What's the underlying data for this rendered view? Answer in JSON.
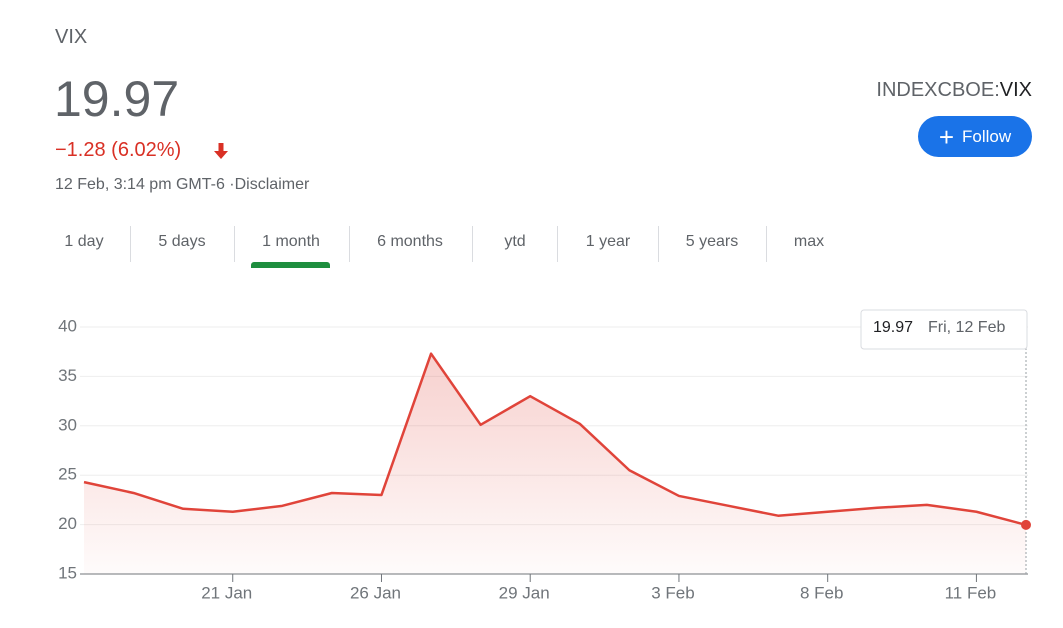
{
  "header": {
    "name": "VIX",
    "price": "19.97",
    "change": "−1.28 (6.02%)",
    "timestamp": "12 Feb, 3:14 pm GMT-6 ·",
    "disclaimer": "Disclaimer",
    "exchange": "INDEXCBOE:",
    "ticker": "VIX",
    "follow": "Follow"
  },
  "tabs": {
    "items": [
      "1 day",
      "5 days",
      "1 month",
      "6 months",
      "ytd",
      "1 year",
      "5 years",
      "max"
    ],
    "active": 2
  },
  "tooltip": {
    "date": "Fri, 12 Feb"
  },
  "chart_data": {
    "type": "line",
    "categories": [
      null,
      null,
      null,
      "21 Jan",
      null,
      null,
      "26 Jan",
      null,
      null,
      "29 Jan",
      null,
      null,
      "3 Feb",
      null,
      null,
      "8 Feb",
      null,
      null,
      "11 Feb",
      null
    ],
    "series": [
      {
        "name": "VIX",
        "color": "#e0443a",
        "values": [
          24.3,
          23.2,
          21.6,
          21.3,
          21.9,
          23.2,
          23.0,
          37.3,
          30.1,
          33.0,
          30.2,
          25.5,
          22.9,
          21.9,
          20.9,
          21.3,
          21.7,
          22.0,
          21.3,
          19.97
        ]
      }
    ],
    "ylim": [
      15,
      40
    ],
    "yticks": [
      15,
      20,
      25,
      30,
      35,
      40
    ],
    "grid": true
  }
}
